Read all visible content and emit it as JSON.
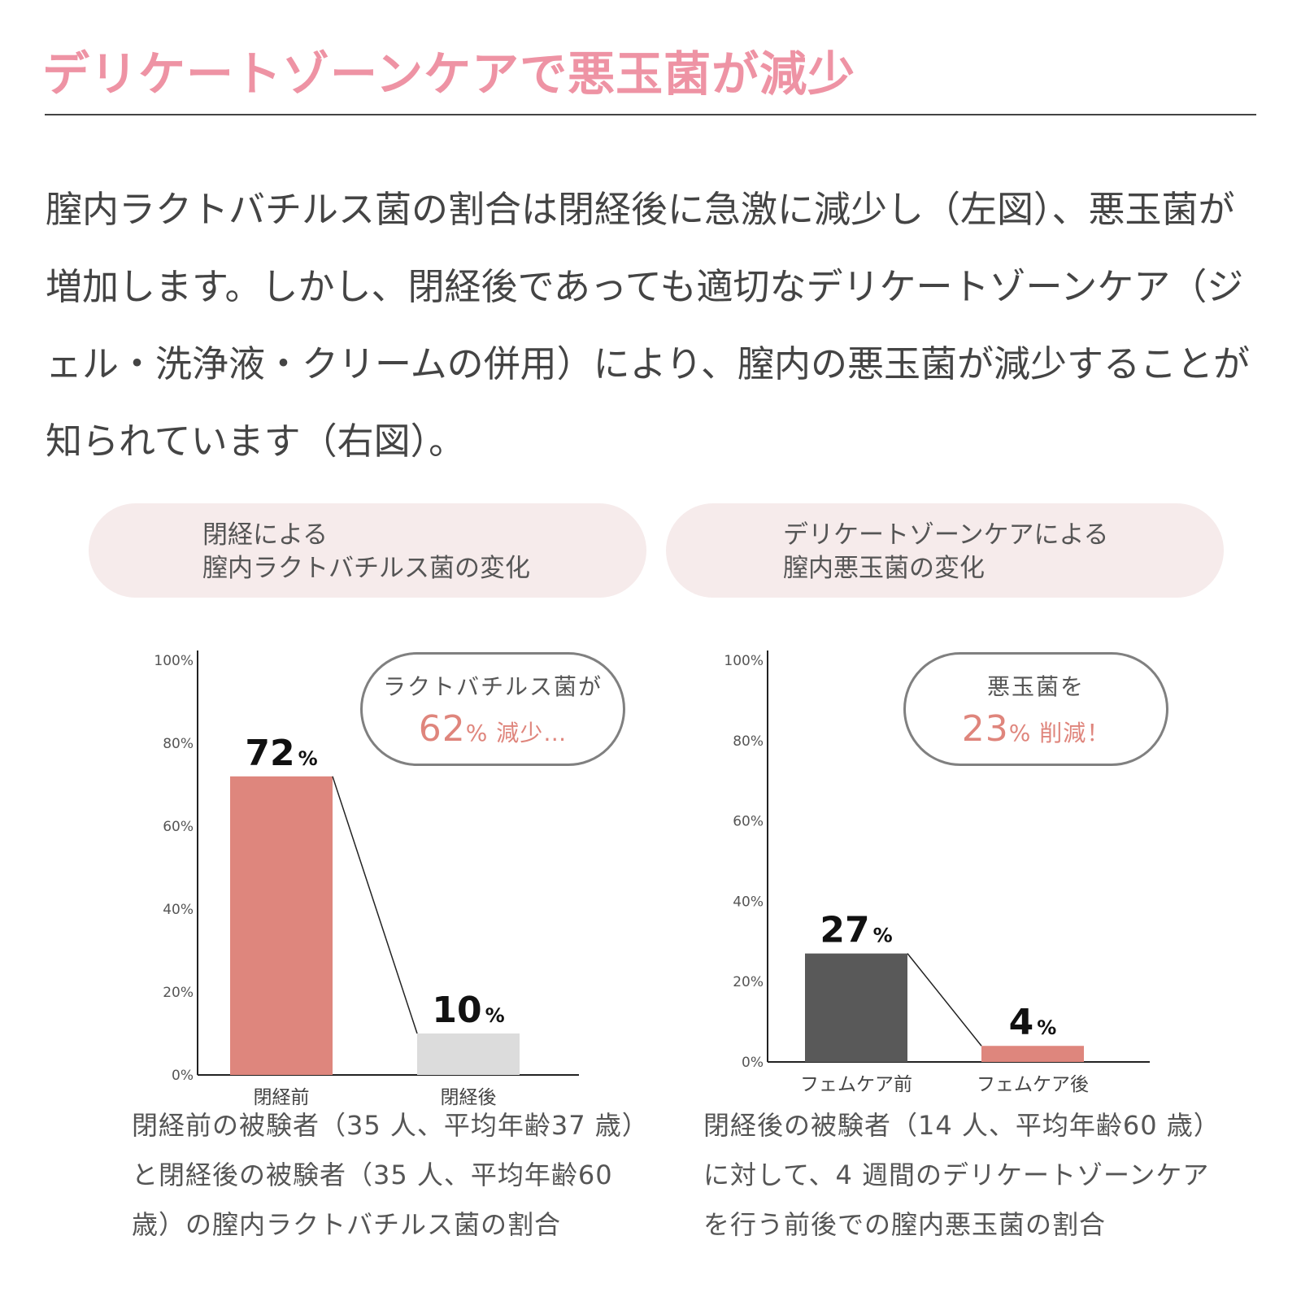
{
  "title": "デリケートゾーンケアで悪玉菌が減少",
  "intro": "膣内ラクトバチルス菌の割合は閉経後に急激に減少し（左図）、悪玉菌が増加します。しかし、閉経後であっても適切なデリケートゾーンケア（ジェル・洗浄液・クリームの併用）により、膣内の悪玉菌が減少することが知られています（右図）。",
  "left_panel": {
    "header_line1": "閉経による",
    "header_line2": "膣内ラクトバチルス菌の変化",
    "callout_line1": "ラクトバチルス菌が",
    "callout_number": "62",
    "callout_suffix": "% 減少…",
    "caption": "閉経前の被験者（35 人、平均年齢37 歳）と閉経後の被験者（35 人、平均年齢60 歳）の膣内ラクトバチルス菌の割合"
  },
  "right_panel": {
    "header_line1": "デリケートゾーンケアによる",
    "header_line2": "膣内悪玉菌の変化",
    "callout_line1": "悪玉菌を",
    "callout_number": "23",
    "callout_suffix": "% 削減！",
    "caption": "閉経後の被験者（14 人、平均年齢60 歳）に対して、4 週間のデリケートゾーンケアを行う前後での膣内悪玉菌の割合"
  },
  "chart_data": [
    {
      "type": "bar",
      "title": "閉経による膣内ラクトバチルス菌の変化",
      "categories": [
        "閉経前",
        "閉経後"
      ],
      "values": [
        72,
        10
      ],
      "value_unit": "%",
      "bar_colors": [
        "#de867d",
        "#dcdcdc"
      ],
      "ylim": [
        0,
        100
      ],
      "yticks": [
        "0%",
        "20%",
        "40%",
        "60%",
        "80%",
        "100%"
      ],
      "grid": false,
      "connector_line": true
    },
    {
      "type": "bar",
      "title": "デリケートゾーンケアによる膣内悪玉菌の変化",
      "categories": [
        "フェムケア前",
        "フェムケア後"
      ],
      "values": [
        27,
        4
      ],
      "value_unit": "%",
      "bar_colors": [
        "#595959",
        "#de867d"
      ],
      "ylim": [
        0,
        100
      ],
      "yticks": [
        "0%",
        "20%",
        "40%",
        "60%",
        "80%",
        "100%"
      ],
      "grid": false,
      "connector_line": true
    }
  ],
  "colors": {
    "title": "#ee93a4",
    "header_bg": "#f6ebeb",
    "accent": "#df857c"
  }
}
